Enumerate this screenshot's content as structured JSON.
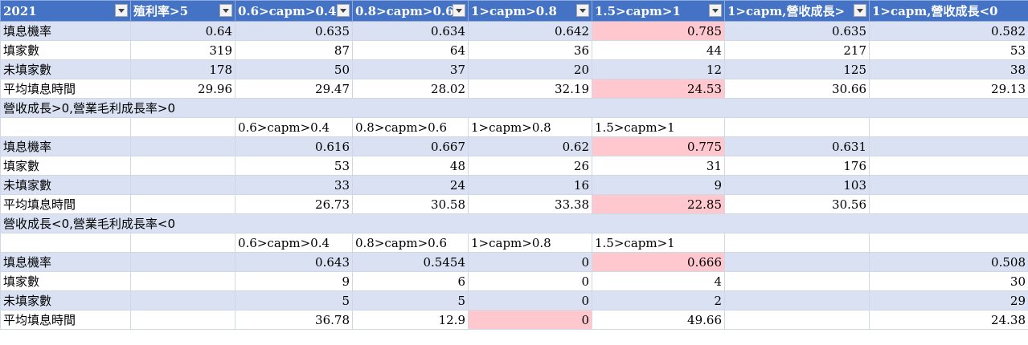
{
  "header": [
    "2021",
    "殖利率>5",
    "0.6>capm>0.4",
    "0.8>capm>0.6",
    "1>capm>0.8",
    "1.5>capm>1",
    "1>capm,營收成長>",
    "1>capm,營收成長<0"
  ],
  "block1": [
    {
      "label": "填息機率",
      "values": [
        "0.64",
        "0.635",
        "0.634",
        "0.642",
        "0.785",
        "0.635",
        "0.582"
      ]
    },
    {
      "label": "填家數",
      "values": [
        "319",
        "87",
        "64",
        "36",
        "44",
        "217",
        "53"
      ]
    },
    {
      "label": "未填家數",
      "values": [
        "178",
        "50",
        "37",
        "20",
        "12",
        "125",
        "38"
      ]
    },
    {
      "label": "平均填息時間",
      "values": [
        "29.96",
        "29.47",
        "28.02",
        "32.19",
        "24.53",
        "30.66",
        "29.13"
      ]
    }
  ],
  "section2": {
    "title": "營收成長>0,營業毛利成長率>0",
    "cols": [
      "0.6>capm>0.4",
      "0.8>capm>0.6",
      "1>capm>0.8",
      "1.5>capm>1"
    ],
    "rows": [
      {
        "label": "填息機率",
        "values": [
          "",
          "0.616",
          "0.667",
          "0.62",
          "0.775",
          "0.631",
          ""
        ]
      },
      {
        "label": "填家數",
        "values": [
          "",
          "53",
          "48",
          "26",
          "31",
          "176",
          ""
        ]
      },
      {
        "label": "未填家數",
        "values": [
          "",
          "33",
          "24",
          "16",
          "9",
          "103",
          ""
        ]
      },
      {
        "label": "平均填息時間",
        "values": [
          "",
          "26.73",
          "30.58",
          "33.38",
          "22.85",
          "30.56",
          ""
        ]
      }
    ]
  },
  "section3": {
    "title": "營收成長<0,營業毛利成長率<0",
    "cols": [
      "0.6>capm>0.4",
      "0.8>capm>0.6",
      "1>capm>0.8",
      "1.5>capm>1"
    ],
    "rows": [
      {
        "label": "填息機率",
        "values": [
          "",
          "0.643",
          "0.5454",
          "0",
          "0.666",
          "",
          "0.508"
        ]
      },
      {
        "label": "填家數",
        "values": [
          "",
          "9",
          "6",
          "0",
          "4",
          "",
          "30"
        ]
      },
      {
        "label": "未填家數",
        "values": [
          "",
          "5",
          "5",
          "0",
          "2",
          "",
          "29"
        ]
      },
      {
        "label": "平均填息時間",
        "values": [
          "",
          "36.78",
          "12.9",
          "0",
          "49.66",
          "",
          "24.38"
        ]
      }
    ]
  },
  "colors": {
    "header_bg": "#4472c4",
    "band_bg": "#d9e1f2",
    "highlight_bg": "#ffc7ce",
    "highlight_text": "#9c0006"
  }
}
